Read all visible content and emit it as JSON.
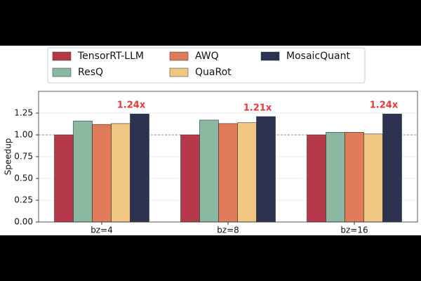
{
  "chart_data": {
    "type": "bar",
    "y_label": "Speedup",
    "categories": [
      "bz=4",
      "bz=8",
      "bz=16"
    ],
    "series": [
      {
        "name": "TensorRT-LLM",
        "color": "#b5394a",
        "values": [
          1.0,
          1.0,
          1.0
        ]
      },
      {
        "name": "ResQ",
        "color": "#8ab8a0",
        "values": [
          1.16,
          1.17,
          1.03
        ]
      },
      {
        "name": "AWQ",
        "color": "#e07b5a",
        "values": [
          1.12,
          1.13,
          1.03
        ]
      },
      {
        "name": "QuaRot",
        "color": "#f0c682",
        "values": [
          1.13,
          1.14,
          1.01
        ]
      },
      {
        "name": "MosaicQuant",
        "color": "#2d3250",
        "values": [
          1.24,
          1.21,
          1.24
        ],
        "value_labels": [
          "1.24x",
          "1.21x",
          "1.24x"
        ],
        "label_color": "#e8383d"
      }
    ],
    "ylim": [
      0,
      1.5
    ],
    "yticks": [
      {
        "value": 0,
        "label": "0.00"
      },
      {
        "value": 0.25,
        "label": "0.25"
      },
      {
        "value": 0.5,
        "label": "0.50"
      },
      {
        "value": 0.75,
        "label": "0.75"
      },
      {
        "value": 1,
        "label": "1.00"
      },
      {
        "value": 1.25,
        "label": "1.25"
      }
    ],
    "reference_line": 1,
    "grid": true,
    "legend": "top"
  }
}
